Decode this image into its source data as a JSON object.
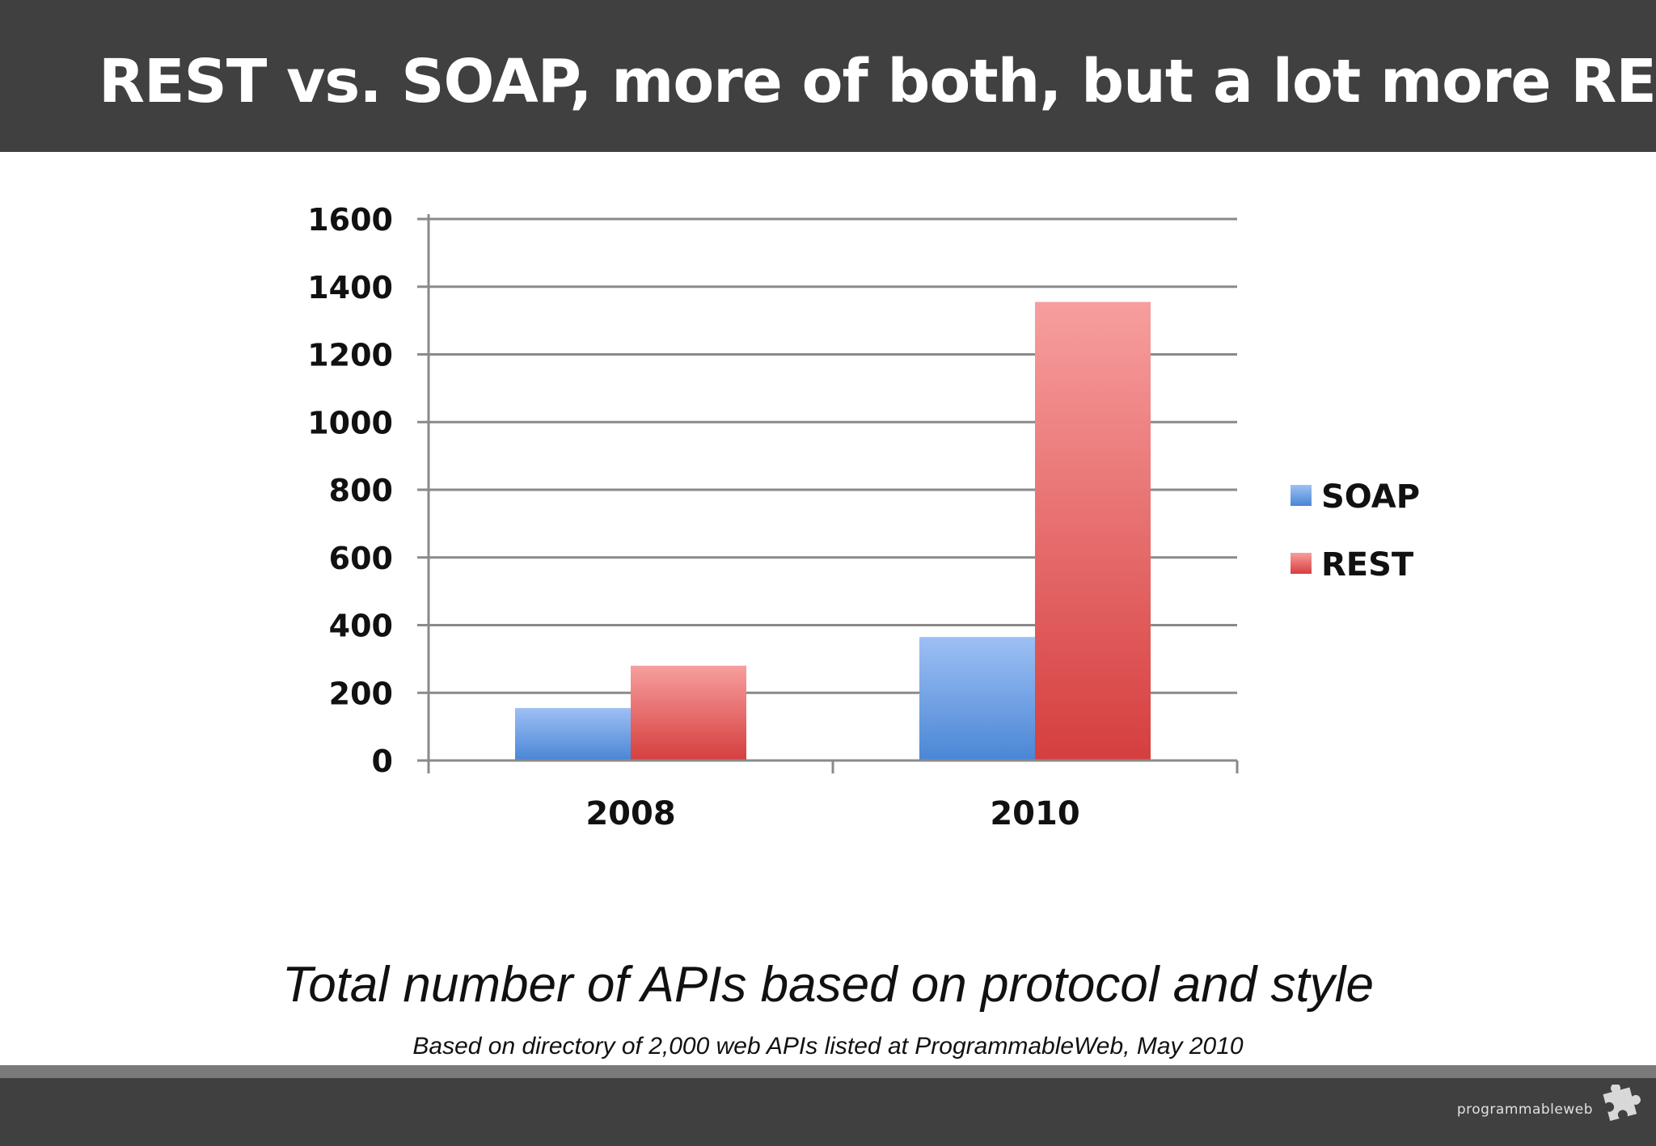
{
  "slide": {
    "title": "REST vs. SOAP, more of both, but a lot more REST",
    "caption": "Total number of APIs based on protocol and style",
    "source": "Based on directory of 2,000 web APIs listed at ProgrammableWeb, May 2010",
    "logo_text": "programmableweb"
  },
  "chart_data": {
    "type": "bar",
    "categories": [
      "2008",
      "2010"
    ],
    "series": [
      {
        "name": "SOAP",
        "values": [
          155,
          365
        ],
        "color": "#5b8fd9"
      },
      {
        "name": "REST",
        "values": [
          280,
          1355
        ],
        "color": "#e05555"
      }
    ],
    "ylim": [
      0,
      1600
    ],
    "yticks": [
      0,
      200,
      400,
      600,
      800,
      1000,
      1200,
      1400,
      1600
    ],
    "grid": true,
    "legend_position": "right"
  }
}
